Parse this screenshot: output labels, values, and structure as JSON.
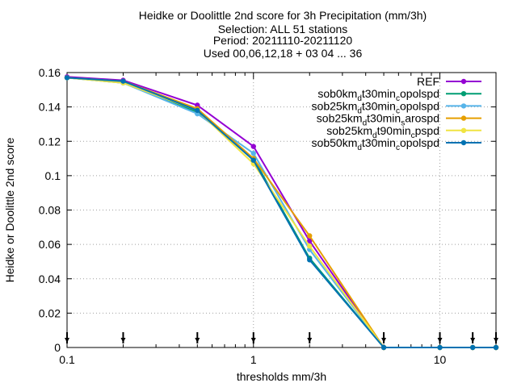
{
  "chart_data": {
    "type": "line",
    "title_lines": [
      "Heidke or Doolittle 2nd score  for 3h Precipitation (mm/3h)",
      "Selection: ALL      51 stations",
      "Period: 20211110-20211120",
      "Used 00,06,12,18 + 03 04 ... 36"
    ],
    "xlabel": "thresholds mm/3h",
    "ylabel": "Heidke or Doolittle 2nd score",
    "x_scale": "log",
    "xlim": [
      0.1,
      20
    ],
    "ylim": [
      0,
      0.16
    ],
    "x_ticks": [
      0.1,
      1,
      10
    ],
    "x_tick_labels": [
      "0.1",
      "1",
      "10"
    ],
    "y_ticks": [
      0,
      0.02,
      0.04,
      0.06,
      0.08,
      0.1,
      0.12,
      0.14,
      0.16
    ],
    "y_tick_labels": [
      "0",
      "0.02",
      "0.04",
      "0.06",
      "0.08",
      "0.1",
      "0.12",
      "0.14",
      "0.16"
    ],
    "grid": true,
    "legend_position": "top-right",
    "x": [
      0.1,
      0.2,
      0.5,
      1,
      2,
      5,
      10,
      15,
      20
    ],
    "threshold_markers": [
      0.1,
      0.2,
      0.5,
      1,
      2,
      5,
      10,
      15,
      20
    ],
    "series": [
      {
        "legend": "REF",
        "color": "#9400d3",
        "values": [
          0.1575,
          0.1555,
          0.141,
          0.117,
          0.062,
          0.0,
          0.0,
          0.0,
          0.0
        ]
      },
      {
        "legend_parts": [
          "sob0km",
          "d",
          "t30min",
          "c",
          "opolspd"
        ],
        "color": "#009e73",
        "values": [
          0.157,
          0.154,
          0.137,
          0.11,
          0.052,
          0.0,
          0.0,
          0.0,
          0.0
        ]
      },
      {
        "legend_parts": [
          "sob25km",
          "d",
          "t30min",
          "c",
          "opolspd"
        ],
        "color": "#56b4e9",
        "values": [
          0.157,
          0.154,
          0.136,
          0.113,
          0.057,
          0.0,
          0.0,
          0.0,
          0.0
        ]
      },
      {
        "legend_parts": [
          "sob25km",
          "d",
          "t30min",
          "s",
          "arospd"
        ],
        "color": "#e69f00",
        "values": [
          0.157,
          0.155,
          0.139,
          0.11,
          0.065,
          0.0,
          0.0,
          0.0,
          0.0
        ]
      },
      {
        "legend_parts": [
          "sob25km",
          "d",
          "t90min",
          "c",
          "pspd"
        ],
        "color": "#f0e442",
        "values": [
          0.157,
          0.154,
          0.138,
          0.107,
          0.059,
          0.0,
          0.0,
          0.0,
          0.0
        ]
      },
      {
        "legend_parts": [
          "sob50km",
          "d",
          "t30min",
          "c",
          "opolspd"
        ],
        "color": "#0072b2",
        "values": [
          0.157,
          0.155,
          0.138,
          0.109,
          0.051,
          0.0,
          0.0,
          0.0,
          0.0
        ]
      }
    ]
  }
}
